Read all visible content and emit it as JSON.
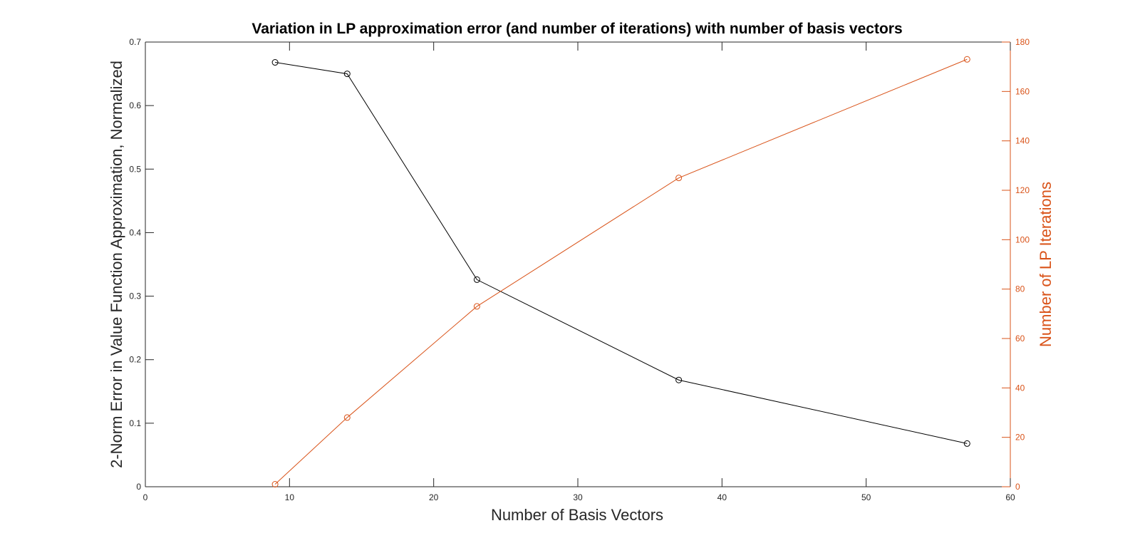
{
  "chart_data": {
    "type": "line",
    "title": "Variation in LP approximation error (and number of iterations) with number of basis vectors",
    "xlabel": "Number of Basis Vectors",
    "ylabel_left": "2-Norm Error in Value Function Approximation, Normalized",
    "ylabel_right": "Number of LP Iterations",
    "xlim": [
      0,
      60
    ],
    "ylim_left": [
      0,
      0.7
    ],
    "ylim_right": [
      0,
      180
    ],
    "x_ticks": [
      "0",
      "10",
      "20",
      "30",
      "40",
      "50",
      "60"
    ],
    "y_left_ticks": [
      "0",
      "0.1",
      "0.2",
      "0.3",
      "0.4",
      "0.5",
      "0.6",
      "0.7"
    ],
    "y_right_ticks": [
      "0",
      "20",
      "40",
      "60",
      "80",
      "100",
      "120",
      "140",
      "160",
      "180"
    ],
    "grid": false,
    "series": [
      {
        "axis": "left",
        "color": "#000000",
        "marker": "circle",
        "x": [
          9,
          14,
          23,
          37,
          57
        ],
        "y": [
          0.668,
          0.65,
          0.326,
          0.168,
          0.068
        ]
      },
      {
        "axis": "right",
        "color": "#D95319",
        "marker": "circle",
        "x": [
          9,
          14,
          23,
          37,
          57
        ],
        "y": [
          1,
          28,
          73,
          125,
          173
        ]
      }
    ]
  }
}
